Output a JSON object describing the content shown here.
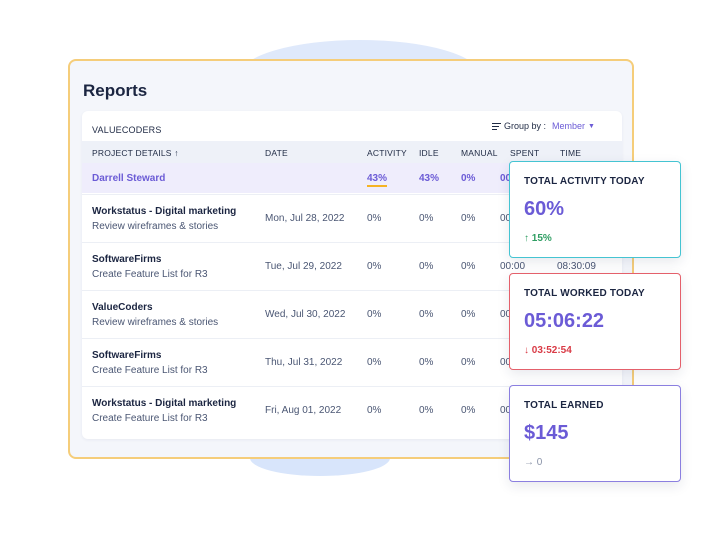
{
  "panel": {
    "title": "Reports"
  },
  "table": {
    "org": "VALUECODERS",
    "group_by_label": "Group by :",
    "group_by_value": "Member",
    "headers": {
      "project": "PROJECT DETAILS ↑",
      "date": "DATE",
      "activity": "ACTIVITY",
      "idle": "IDLE",
      "manual": "MANUAL",
      "spent": "SPENT",
      "time": "TIME"
    },
    "summary": {
      "name": "Darrell Steward",
      "activity": "43%",
      "idle": "43%",
      "manual": "0%",
      "spent": "00"
    },
    "rows": [
      {
        "project": "Workstatus - Digital marketing",
        "task": "Review wireframes & stories",
        "date": "Mon, Jul 28, 2022",
        "activity": "0%",
        "idle": "0%",
        "manual": "0%",
        "spent": "00",
        "time": ""
      },
      {
        "project": "SoftwareFirms",
        "task": "Create Feature List for R3",
        "date": "Tue, Jul 29, 2022",
        "activity": "0%",
        "idle": "0%",
        "manual": "0%",
        "spent": "00:00",
        "time": "08:30:09"
      },
      {
        "project": "ValueCoders",
        "task": "Review wireframes & stories",
        "date": "Wed, Jul 30, 2022",
        "activity": "0%",
        "idle": "0%",
        "manual": "0%",
        "spent": "00",
        "time": ""
      },
      {
        "project": "SoftwareFirms",
        "task": "Create Feature List for R3",
        "date": "Thu, Jul 31, 2022",
        "activity": "0%",
        "idle": "0%",
        "manual": "0%",
        "spent": "00",
        "time": ""
      },
      {
        "project": "Workstatus - Digital marketing",
        "task": "Create Feature List for R3",
        "date": "Fri, Aug 01, 2022",
        "activity": "0%",
        "idle": "0%",
        "manual": "0%",
        "spent": "00",
        "time": ""
      }
    ]
  },
  "stats": [
    {
      "label": "TOTAL ACTIVITY TODAY",
      "value": "60%",
      "change": "↑ 15%",
      "color": "#45c4d2"
    },
    {
      "label": "TOTAL WORKED TODAY",
      "value": "05:06:22",
      "change": "↓ 03:52:54",
      "color": "#e4606b"
    },
    {
      "label": "TOTAL EARNED",
      "value": "$145",
      "change": "→ 0",
      "color": "#8b7fe0"
    }
  ]
}
